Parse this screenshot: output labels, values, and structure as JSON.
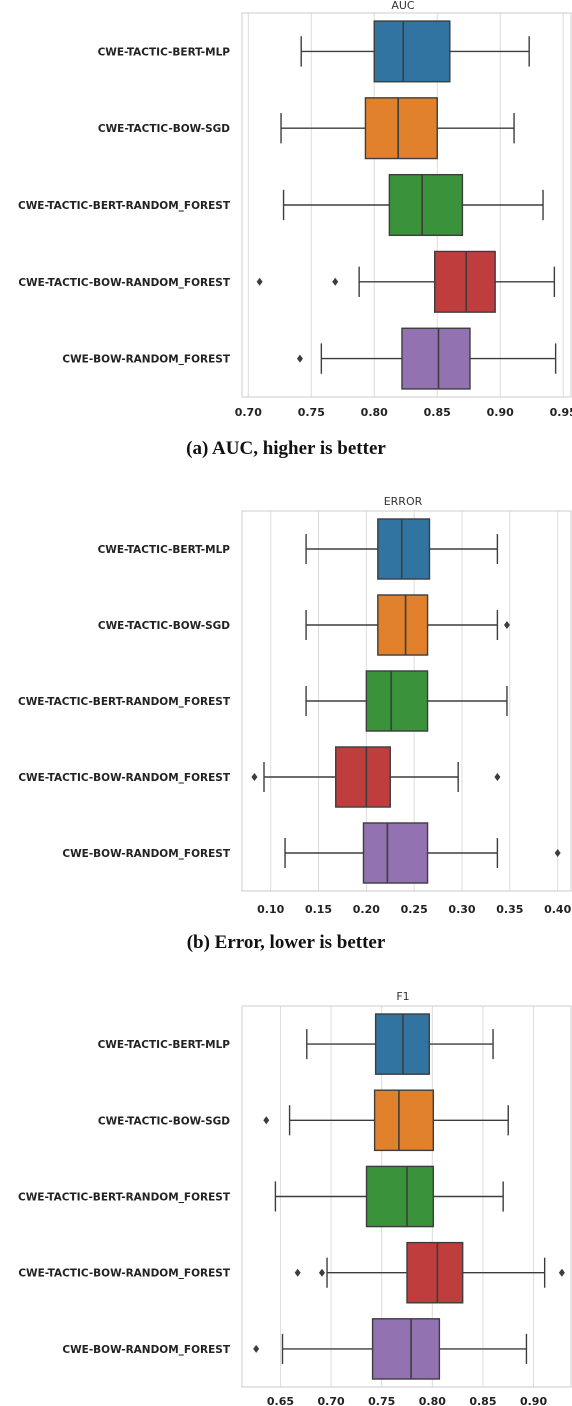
{
  "chart_data": [
    {
      "type": "box",
      "title": "AUC",
      "caption": "(a) AUC, higher is better",
      "xlim": [
        0.695,
        0.957
      ],
      "xticks": [
        0.7,
        0.75,
        0.8,
        0.85,
        0.9,
        0.95
      ],
      "tick_labels": [
        "0.70",
        "0.75",
        "0.80",
        "0.85",
        "0.90",
        "0.95"
      ],
      "grid": true,
      "categories": [
        "CWE-TACTIC-BERT-MLP",
        "CWE-TACTIC-BOW-SGD",
        "CWE-TACTIC-BERT-RANDOM_FOREST",
        "CWE-TACTIC-BOW-RANDOM_FOREST",
        "CWE-BOW-RANDOM_FOREST"
      ],
      "colors": [
        "#3274a1",
        "#e1812c",
        "#3a923a",
        "#c03d3e",
        "#9372b2"
      ],
      "boxes": [
        {
          "whislo": 0.742,
          "q1": 0.8,
          "med": 0.823,
          "q3": 0.86,
          "whishi": 0.923,
          "fliers": []
        },
        {
          "whislo": 0.726,
          "q1": 0.793,
          "med": 0.819,
          "q3": 0.85,
          "whishi": 0.911,
          "fliers": []
        },
        {
          "whislo": 0.728,
          "q1": 0.812,
          "med": 0.838,
          "q3": 0.87,
          "whishi": 0.934,
          "fliers": []
        },
        {
          "whislo": 0.788,
          "q1": 0.848,
          "med": 0.873,
          "q3": 0.896,
          "whishi": 0.943,
          "fliers": [
            0.709,
            0.769
          ]
        },
        {
          "whislo": 0.758,
          "q1": 0.822,
          "med": 0.851,
          "q3": 0.876,
          "whishi": 0.944,
          "fliers": [
            0.741
          ]
        }
      ]
    },
    {
      "type": "box",
      "title": "ERROR",
      "caption": "(b) Error, lower is better",
      "xlim": [
        0.07,
        0.415
      ],
      "xticks": [
        0.1,
        0.15,
        0.2,
        0.25,
        0.3,
        0.35,
        0.4
      ],
      "tick_labels": [
        "0.10",
        "0.15",
        "0.20",
        "0.25",
        "0.30",
        "0.35",
        "0.40"
      ],
      "grid": true,
      "categories": [
        "CWE-TACTIC-BERT-MLP",
        "CWE-TACTIC-BOW-SGD",
        "CWE-TACTIC-BERT-RANDOM_FOREST",
        "CWE-TACTIC-BOW-RANDOM_FOREST",
        "CWE-BOW-RANDOM_FOREST"
      ],
      "colors": [
        "#3274a1",
        "#e1812c",
        "#3a923a",
        "#c03d3e",
        "#9372b2"
      ],
      "boxes": [
        {
          "whislo": 0.137,
          "q1": 0.212,
          "med": 0.237,
          "q3": 0.266,
          "whishi": 0.337,
          "fliers": []
        },
        {
          "whislo": 0.137,
          "q1": 0.212,
          "med": 0.241,
          "q3": 0.264,
          "whishi": 0.337,
          "fliers": [
            0.347
          ]
        },
        {
          "whislo": 0.137,
          "q1": 0.2,
          "med": 0.226,
          "q3": 0.264,
          "whishi": 0.347,
          "fliers": []
        },
        {
          "whislo": 0.093,
          "q1": 0.168,
          "med": 0.2,
          "q3": 0.225,
          "whishi": 0.296,
          "fliers": [
            0.083,
            0.337
          ]
        },
        {
          "whislo": 0.115,
          "q1": 0.197,
          "med": 0.222,
          "q3": 0.264,
          "whishi": 0.337,
          "fliers": [
            0.4
          ]
        }
      ]
    },
    {
      "type": "box",
      "title": "F1",
      "caption": "",
      "xlim": [
        0.612,
        0.938
      ],
      "xticks": [
        0.65,
        0.7,
        0.75,
        0.8,
        0.85,
        0.9
      ],
      "tick_labels": [
        "0.65",
        "0.70",
        "0.75",
        "0.80",
        "0.85",
        "0.90"
      ],
      "grid": true,
      "categories": [
        "CWE-TACTIC-BERT-MLP",
        "CWE-TACTIC-BOW-SGD",
        "CWE-TACTIC-BERT-RANDOM_FOREST",
        "CWE-TACTIC-BOW-RANDOM_FOREST",
        "CWE-BOW-RANDOM_FOREST"
      ],
      "colors": [
        "#3274a1",
        "#e1812c",
        "#3a923a",
        "#c03d3e",
        "#9372b2"
      ],
      "boxes": [
        {
          "whislo": 0.676,
          "q1": 0.744,
          "med": 0.771,
          "q3": 0.797,
          "whishi": 0.86,
          "fliers": []
        },
        {
          "whislo": 0.659,
          "q1": 0.743,
          "med": 0.767,
          "q3": 0.801,
          "whishi": 0.875,
          "fliers": [
            0.636
          ]
        },
        {
          "whislo": 0.645,
          "q1": 0.735,
          "med": 0.775,
          "q3": 0.801,
          "whishi": 0.87,
          "fliers": []
        },
        {
          "whislo": 0.696,
          "q1": 0.775,
          "med": 0.805,
          "q3": 0.83,
          "whishi": 0.911,
          "fliers": [
            0.667,
            0.691,
            0.928
          ]
        },
        {
          "whislo": 0.652,
          "q1": 0.741,
          "med": 0.779,
          "q3": 0.807,
          "whishi": 0.893,
          "fliers": [
            0.626
          ]
        }
      ]
    }
  ]
}
